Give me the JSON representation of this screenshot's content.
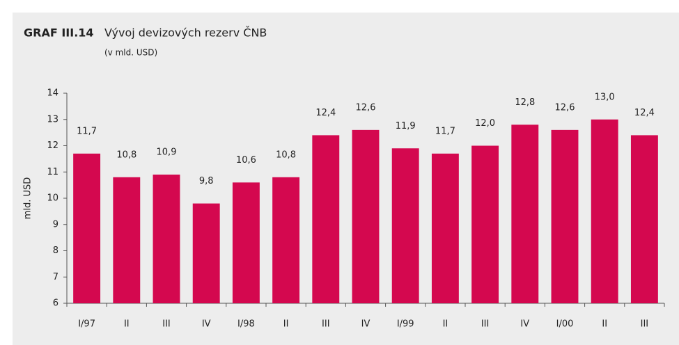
{
  "chart_data": {
    "type": "bar",
    "title_label": "GRAF III.14",
    "title": "Vývoj devizových rezerv ČNB",
    "subtitle": "(v mld. USD)",
    "y_label": "mld. USD",
    "categories": [
      "I/97",
      "II",
      "III",
      "IV",
      "I/98",
      "II",
      "III",
      "IV",
      "I/99",
      "II",
      "III",
      "IV",
      "I/00",
      "II",
      "III"
    ],
    "values": [
      11.7,
      10.8,
      10.9,
      9.8,
      10.6,
      10.8,
      12.4,
      12.6,
      11.9,
      11.7,
      12.0,
      12.8,
      12.6,
      13.0,
      12.4
    ],
    "value_labels": [
      "11,7",
      "10,8",
      "10,9",
      "9,8",
      "10,6",
      "10,8",
      "12,4",
      "12,6",
      "11,9",
      "11,7",
      "12,0",
      "12,8",
      "12,6",
      "13,0",
      "12,4"
    ],
    "color": "#d4084f",
    "ylim": [
      6,
      14
    ],
    "yticks": [
      6,
      7,
      8,
      9,
      10,
      11,
      12,
      13,
      14
    ],
    "grid": false
  }
}
